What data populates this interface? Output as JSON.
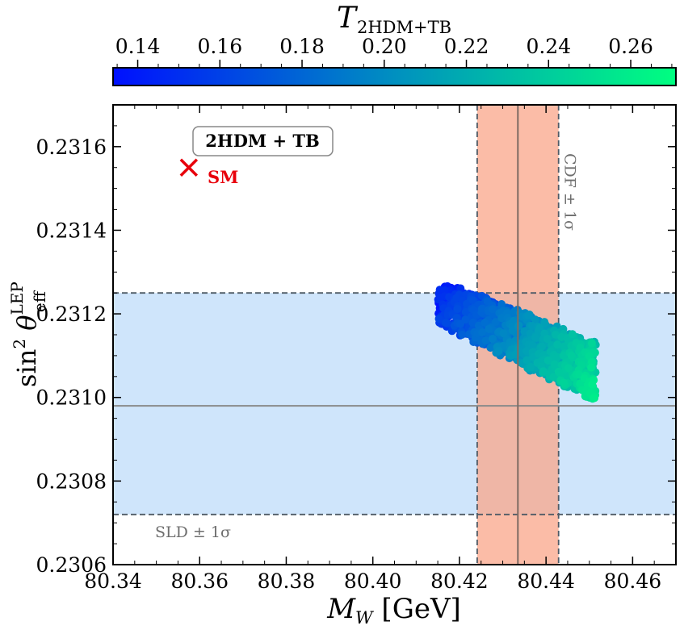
{
  "chart_data": {
    "type": "scatter",
    "xlabel": {
      "main": "M",
      "sub": "W",
      "unit": " [GeV]"
    },
    "ylabel": {
      "pre": "sin",
      "sup2": "2",
      "theta": " θ",
      "sub": "eff",
      "sup": "LEP"
    },
    "xlim": [
      80.34,
      80.47
    ],
    "ylim": [
      0.2306,
      0.2317
    ],
    "xticks": [
      80.34,
      80.36,
      80.38,
      80.4,
      80.42,
      80.44,
      80.46
    ],
    "xtick_labels": [
      "80.34",
      "80.36",
      "80.38",
      "80.40",
      "80.42",
      "80.44",
      "80.46"
    ],
    "yticks": [
      0.2306,
      0.2308,
      0.231,
      0.2312,
      0.2314,
      0.2316
    ],
    "ytick_labels": [
      "0.2306",
      "0.2308",
      "0.2310",
      "0.2312",
      "0.2314",
      "0.2316"
    ],
    "colorbar": {
      "label_main": "T",
      "label_sub": "2HDM+TB",
      "range": [
        0.134,
        0.271
      ],
      "ticks": [
        0.14,
        0.16,
        0.18,
        0.2,
        0.22,
        0.24,
        0.26
      ],
      "tick_labels": [
        "0.14",
        "0.16",
        "0.18",
        "0.20",
        "0.22",
        "0.24",
        "0.26"
      ],
      "color_low": "#0010ff",
      "color_mid": "#0090c0",
      "color_high": "#00ff80"
    },
    "cdf_band": {
      "center": 80.4335,
      "low": 80.4241,
      "high": 80.4429,
      "label": "CDF ± 1σ",
      "color": "#f9a58a"
    },
    "sld_band": {
      "center": 0.23098,
      "low": 0.23072,
      "high": 0.23125,
      "label": "SLD ± 1σ",
      "color": "#cfe5fb"
    },
    "sm_point": {
      "x": 80.3575,
      "y": 0.23155,
      "label": "SM",
      "color": "#e8000b"
    },
    "model_label": "2HDM + TB",
    "scan_region": {
      "description": "2HDM+TB parameter scan",
      "left_edge": {
        "x": 80.415,
        "y_low": 0.23118,
        "y_high": 0.23128
      },
      "right_edge": {
        "x": 80.4515,
        "y_low": 0.23099,
        "y_high": 0.23113
      },
      "point_count": 1400
    }
  }
}
